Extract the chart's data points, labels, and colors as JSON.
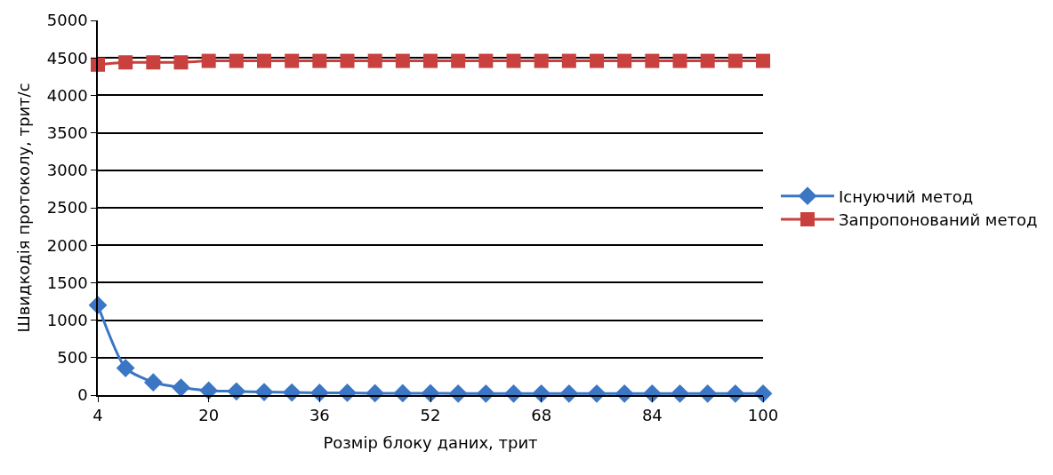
{
  "chart_data": {
    "type": "line",
    "xlabel": "Розмір блоку даних, трит",
    "ylabel": "Швидкодія протоколу, трит/с",
    "x": [
      4,
      8,
      12,
      16,
      20,
      24,
      28,
      32,
      36,
      40,
      44,
      48,
      52,
      56,
      60,
      64,
      68,
      72,
      76,
      80,
      84,
      88,
      92,
      96,
      100
    ],
    "series": [
      {
        "name": "Існуючий метод",
        "color": "#3a76c4",
        "marker": "diamond",
        "values": [
          1200,
          360,
          170,
          100,
          60,
          50,
          40,
          35,
          30,
          30,
          25,
          25,
          25,
          20,
          20,
          20,
          20,
          20,
          20,
          20,
          20,
          20,
          20,
          20,
          20
        ]
      },
      {
        "name": "Запропонований метод",
        "color": "#c9413f",
        "marker": "square",
        "values": [
          4410,
          4440,
          4440,
          4440,
          4460,
          4460,
          4460,
          4460,
          4460,
          4460,
          4460,
          4460,
          4460,
          4460,
          4460,
          4460,
          4460,
          4460,
          4460,
          4460,
          4460,
          4460,
          4460,
          4460,
          4460
        ]
      }
    ],
    "xlim": [
      4,
      100
    ],
    "xticks": [
      4,
      20,
      36,
      52,
      68,
      84,
      100
    ],
    "ylim": [
      0,
      5000
    ],
    "yticks": [
      0,
      500,
      1000,
      1500,
      2000,
      2500,
      3000,
      3500,
      4000,
      4500,
      5000
    ],
    "grid": "y",
    "legend": "right"
  }
}
